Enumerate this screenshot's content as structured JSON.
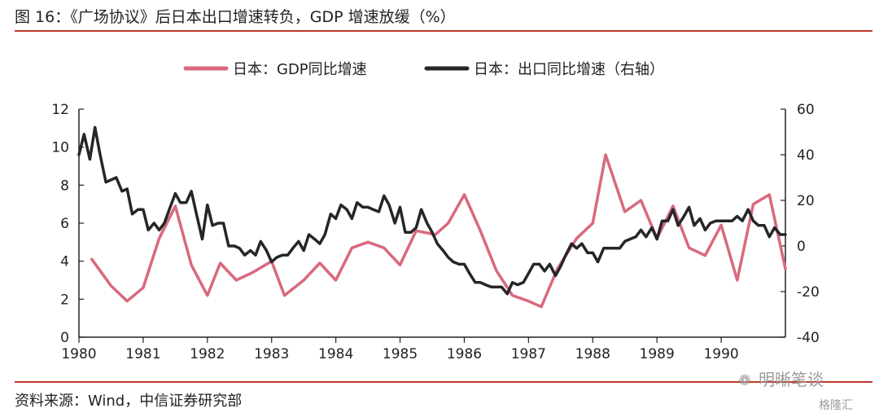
{
  "header": {
    "title": "图 16：《广场协议》后日本出口增速转负，GDP 增速放缓（%）"
  },
  "footer": {
    "source": "资料来源：Wind，中信证券研究部",
    "watermark": "明晰笔谈",
    "corner_mark": "格隆汇"
  },
  "colors": {
    "rule": "#c0392b",
    "gdp_series": "#d9687e",
    "export_series": "#262626",
    "axis": "#222222"
  },
  "chart_data": {
    "type": "line",
    "title": "",
    "xlabel": "",
    "ylabel": "",
    "x_ticks": [
      "1980",
      "1981",
      "1982",
      "1983",
      "1984",
      "1985",
      "1986",
      "1987",
      "1988",
      "1989",
      "1990"
    ],
    "x_range": [
      1980.0,
      1991.0
    ],
    "y_left_range": [
      0,
      12
    ],
    "y_left_ticks": [
      0,
      2,
      4,
      6,
      8,
      10,
      12
    ],
    "y_right_range": [
      -40,
      60
    ],
    "y_right_ticks": [
      -40,
      -20,
      0,
      20,
      40,
      60
    ],
    "legend": {
      "placement": "top-center"
    },
    "grid": false,
    "series": [
      {
        "name": "日本：GDP同比增速",
        "axis": "left",
        "color": "#d9687e",
        "points": [
          [
            1980.2,
            4.1
          ],
          [
            1980.5,
            2.7
          ],
          [
            1980.75,
            1.9
          ],
          [
            1981.0,
            2.6
          ],
          [
            1981.25,
            5.2
          ],
          [
            1981.5,
            6.9
          ],
          [
            1981.75,
            3.8
          ],
          [
            1982.0,
            2.2
          ],
          [
            1982.2,
            3.9
          ],
          [
            1982.45,
            3.0
          ],
          [
            1982.7,
            3.4
          ],
          [
            1983.0,
            4.0
          ],
          [
            1983.2,
            2.2
          ],
          [
            1983.5,
            3.0
          ],
          [
            1983.75,
            3.9
          ],
          [
            1984.0,
            3.0
          ],
          [
            1984.25,
            4.7
          ],
          [
            1984.5,
            5.0
          ],
          [
            1984.75,
            4.7
          ],
          [
            1985.0,
            3.8
          ],
          [
            1985.25,
            5.6
          ],
          [
            1985.55,
            5.4
          ],
          [
            1985.75,
            6.0
          ],
          [
            1986.0,
            7.5
          ],
          [
            1986.25,
            5.6
          ],
          [
            1986.5,
            3.5
          ],
          [
            1986.75,
            2.2
          ],
          [
            1987.0,
            1.9
          ],
          [
            1987.2,
            1.6
          ],
          [
            1987.45,
            3.6
          ],
          [
            1987.75,
            5.2
          ],
          [
            1988.0,
            6.0
          ],
          [
            1988.2,
            9.6
          ],
          [
            1988.5,
            6.6
          ],
          [
            1988.75,
            7.2
          ],
          [
            1989.0,
            5.2
          ],
          [
            1989.25,
            6.9
          ],
          [
            1989.5,
            4.7
          ],
          [
            1989.75,
            4.3
          ],
          [
            1990.0,
            5.9
          ],
          [
            1990.25,
            3.0
          ],
          [
            1990.5,
            7.0
          ],
          [
            1990.75,
            7.5
          ],
          [
            1991.0,
            3.6
          ]
        ]
      },
      {
        "name": "日本：出口同比增速（右轴）",
        "axis": "right",
        "color": "#262626",
        "points": [
          [
            1980.0,
            40
          ],
          [
            1980.08,
            49
          ],
          [
            1980.17,
            38
          ],
          [
            1980.25,
            52
          ],
          [
            1980.33,
            40
          ],
          [
            1980.42,
            28
          ],
          [
            1980.5,
            29
          ],
          [
            1980.58,
            30
          ],
          [
            1980.67,
            24
          ],
          [
            1980.75,
            25
          ],
          [
            1980.83,
            14
          ],
          [
            1980.92,
            16
          ],
          [
            1981.0,
            16
          ],
          [
            1981.08,
            7
          ],
          [
            1981.17,
            10
          ],
          [
            1981.25,
            7
          ],
          [
            1981.33,
            10
          ],
          [
            1981.42,
            17
          ],
          [
            1981.5,
            23
          ],
          [
            1981.58,
            19
          ],
          [
            1981.67,
            19
          ],
          [
            1981.75,
            24
          ],
          [
            1981.83,
            14
          ],
          [
            1981.92,
            3
          ],
          [
            1982.0,
            18
          ],
          [
            1982.08,
            9
          ],
          [
            1982.17,
            10
          ],
          [
            1982.25,
            10
          ],
          [
            1982.33,
            0
          ],
          [
            1982.42,
            0
          ],
          [
            1982.5,
            -1
          ],
          [
            1982.58,
            -4
          ],
          [
            1982.67,
            -2
          ],
          [
            1982.75,
            -4
          ],
          [
            1982.83,
            2
          ],
          [
            1982.92,
            -2
          ],
          [
            1983.0,
            -7
          ],
          [
            1983.08,
            -5
          ],
          [
            1983.17,
            -4
          ],
          [
            1983.25,
            -4
          ],
          [
            1983.33,
            -1
          ],
          [
            1983.42,
            2
          ],
          [
            1983.5,
            -2
          ],
          [
            1983.58,
            5
          ],
          [
            1983.67,
            3
          ],
          [
            1983.75,
            1
          ],
          [
            1983.83,
            5
          ],
          [
            1983.92,
            14
          ],
          [
            1984.0,
            12
          ],
          [
            1984.08,
            18
          ],
          [
            1984.17,
            16
          ],
          [
            1984.25,
            12
          ],
          [
            1984.33,
            19
          ],
          [
            1984.42,
            17
          ],
          [
            1984.5,
            17
          ],
          [
            1984.58,
            16
          ],
          [
            1984.67,
            15
          ],
          [
            1984.75,
            22
          ],
          [
            1984.83,
            18
          ],
          [
            1984.92,
            10
          ],
          [
            1985.0,
            17
          ],
          [
            1985.08,
            6
          ],
          [
            1985.17,
            6
          ],
          [
            1985.25,
            8
          ],
          [
            1985.33,
            16
          ],
          [
            1985.42,
            10
          ],
          [
            1985.5,
            6
          ],
          [
            1985.58,
            1
          ],
          [
            1985.67,
            -2
          ],
          [
            1985.75,
            -5
          ],
          [
            1985.83,
            -7
          ],
          [
            1985.92,
            -8
          ],
          [
            1986.0,
            -8
          ],
          [
            1986.08,
            -12
          ],
          [
            1986.17,
            -16
          ],
          [
            1986.25,
            -16
          ],
          [
            1986.33,
            -17
          ],
          [
            1986.42,
            -18
          ],
          [
            1986.5,
            -18
          ],
          [
            1986.58,
            -18
          ],
          [
            1986.67,
            -21
          ],
          [
            1986.75,
            -16
          ],
          [
            1986.83,
            -17
          ],
          [
            1986.92,
            -16
          ],
          [
            1987.0,
            -12
          ],
          [
            1987.08,
            -8
          ],
          [
            1987.17,
            -8
          ],
          [
            1987.25,
            -11
          ],
          [
            1987.33,
            -8
          ],
          [
            1987.42,
            -13
          ],
          [
            1987.5,
            -9
          ],
          [
            1987.58,
            -4
          ],
          [
            1987.67,
            1
          ],
          [
            1987.75,
            -1
          ],
          [
            1987.83,
            1
          ],
          [
            1987.92,
            -3
          ],
          [
            1988.0,
            -3
          ],
          [
            1988.08,
            -7
          ],
          [
            1988.17,
            -1
          ],
          [
            1988.25,
            -1
          ],
          [
            1988.33,
            -1
          ],
          [
            1988.42,
            -1
          ],
          [
            1988.5,
            2
          ],
          [
            1988.58,
            3
          ],
          [
            1988.67,
            4
          ],
          [
            1988.75,
            7
          ],
          [
            1988.83,
            4
          ],
          [
            1988.92,
            8
          ],
          [
            1989.0,
            3
          ],
          [
            1989.08,
            11
          ],
          [
            1989.17,
            11
          ],
          [
            1989.25,
            16
          ],
          [
            1989.33,
            9
          ],
          [
            1989.42,
            13
          ],
          [
            1989.5,
            17
          ],
          [
            1989.58,
            9
          ],
          [
            1989.67,
            12
          ],
          [
            1989.75,
            7
          ],
          [
            1989.83,
            10
          ],
          [
            1989.92,
            11
          ],
          [
            1990.0,
            11
          ],
          [
            1990.08,
            11
          ],
          [
            1990.17,
            11
          ],
          [
            1990.25,
            13
          ],
          [
            1990.33,
            11
          ],
          [
            1990.42,
            16
          ],
          [
            1990.5,
            11
          ],
          [
            1990.58,
            9
          ],
          [
            1990.67,
            9
          ],
          [
            1990.75,
            4
          ],
          [
            1990.83,
            8
          ],
          [
            1990.92,
            5
          ],
          [
            1991.0,
            5
          ]
        ]
      }
    ]
  }
}
